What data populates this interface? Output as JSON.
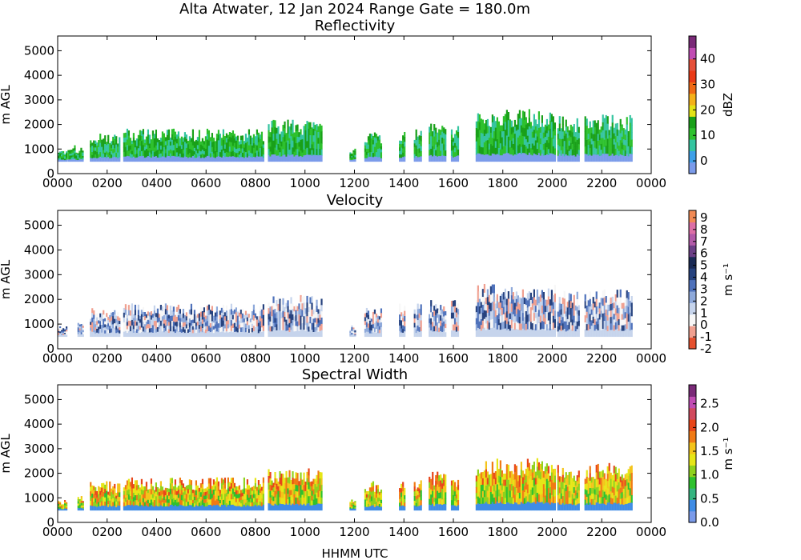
{
  "figure": {
    "title": "Alta Atwater, 12 Jan 2024 Range Gate = 180.0m",
    "xlabel": "HHMM UTC",
    "ylabel": "m AGL"
  },
  "chart_data": [
    {
      "type": "heatmap",
      "title": "Reflectivity",
      "xlabel": "HHMM UTC",
      "ylabel": "m AGL",
      "x_ticks": [
        "0000",
        "0200",
        "0400",
        "0600",
        "0800",
        "1000",
        "1200",
        "1400",
        "1600",
        "1800",
        "2000",
        "2200",
        "0000"
      ],
      "y_ticks": [
        "0",
        "1000",
        "2000",
        "3000",
        "4000",
        "5000"
      ],
      "xlim": [
        0,
        2400
      ],
      "ylim": [
        0,
        5600
      ],
      "colorbar": {
        "label": "dBZ",
        "range": [
          -5,
          49
        ],
        "ticks": [
          "0",
          "10",
          "20",
          "30",
          "40"
        ],
        "tick_values": [
          0,
          10,
          20,
          30,
          40
        ],
        "colors": [
          "#7b9bea",
          "#3ea0e8",
          "#35c5a0",
          "#2ec12e",
          "#19a019",
          "#e3e317",
          "#f4b11a",
          "#f06a15",
          "#ea3a17",
          "#e5503a",
          "#c04cb3",
          "#7a2a78"
        ]
      },
      "echo_segments": [
        {
          "x": [
            0,
            35
          ],
          "top_m": 900
        },
        {
          "x": [
            40,
            100
          ],
          "top_m": 1100
        },
        {
          "x": [
            130,
            250
          ],
          "top_m": 1600
        },
        {
          "x": [
            265,
            830
          ],
          "top_m": 1750
        },
        {
          "x": [
            850,
            1070
          ],
          "top_m": 2100
        },
        {
          "x": [
            1180,
            1200
          ],
          "top_m": 1000
        },
        {
          "x": [
            1240,
            1310
          ],
          "top_m": 1600
        },
        {
          "x": [
            1380,
            1400
          ],
          "top_m": 1750
        },
        {
          "x": [
            1440,
            1470
          ],
          "top_m": 1800
        },
        {
          "x": [
            1500,
            1570
          ],
          "top_m": 2000
        },
        {
          "x": [
            1590,
            1620
          ],
          "top_m": 1900
        },
        {
          "x": [
            1690,
            2010
          ],
          "top_m": 2500
        },
        {
          "x": [
            2020,
            2110
          ],
          "top_m": 2250
        },
        {
          "x": [
            2130,
            2320
          ],
          "top_m": 2300
        }
      ]
    },
    {
      "type": "heatmap",
      "title": "Velocity",
      "xlabel": "HHMM UTC",
      "ylabel": "m AGL",
      "x_ticks": [
        "0000",
        "0200",
        "0400",
        "0600",
        "0800",
        "1000",
        "1200",
        "1400",
        "1600",
        "1800",
        "2000",
        "2200",
        "0000"
      ],
      "y_ticks": [
        "0",
        "1000",
        "2000",
        "3000",
        "4000",
        "5000"
      ],
      "xlim": [
        0,
        2400
      ],
      "ylim": [
        0,
        5600
      ],
      "colorbar": {
        "label": "m s⁻¹",
        "range": [
          -2,
          9.6
        ],
        "ticks": [
          "-2",
          "-1",
          "0",
          "1",
          "2",
          "3",
          "4",
          "5",
          "6",
          "7",
          "8",
          "9"
        ],
        "tick_values": [
          -2,
          -1,
          0,
          1,
          2,
          3,
          4,
          5,
          6,
          7,
          8,
          9
        ],
        "colors": [
          "#e5502e",
          "#f0a090",
          "#f7f7f7",
          "#c6d4ec",
          "#8ea9da",
          "#4f72bb",
          "#26427e",
          "#1a2a55",
          "#6b3f86",
          "#b25aa8",
          "#dc6fa6",
          "#f18a55"
        ]
      },
      "echo_segments": [
        {
          "x": [
            0,
            35
          ],
          "top_m": 900
        },
        {
          "x": [
            80,
            100
          ],
          "top_m": 1100
        },
        {
          "x": [
            130,
            250
          ],
          "top_m": 1600
        },
        {
          "x": [
            265,
            830
          ],
          "top_m": 1750
        },
        {
          "x": [
            850,
            1070
          ],
          "top_m": 2100
        },
        {
          "x": [
            1180,
            1200
          ],
          "top_m": 1000
        },
        {
          "x": [
            1240,
            1310
          ],
          "top_m": 1600
        },
        {
          "x": [
            1380,
            1400
          ],
          "top_m": 1750
        },
        {
          "x": [
            1440,
            1470
          ],
          "top_m": 1800
        },
        {
          "x": [
            1500,
            1570
          ],
          "top_m": 2000
        },
        {
          "x": [
            1590,
            1620
          ],
          "top_m": 1900
        },
        {
          "x": [
            1690,
            2010
          ],
          "top_m": 2500
        },
        {
          "x": [
            2020,
            2110
          ],
          "top_m": 2250
        },
        {
          "x": [
            2130,
            2320
          ],
          "top_m": 2300
        }
      ]
    },
    {
      "type": "heatmap",
      "title": "Spectral Width",
      "xlabel": "HHMM UTC",
      "ylabel": "m AGL",
      "x_ticks": [
        "0000",
        "0200",
        "0400",
        "0600",
        "0800",
        "1000",
        "1200",
        "1400",
        "1600",
        "1800",
        "2000",
        "2200",
        "0000"
      ],
      "y_ticks": [
        "0",
        "1000",
        "2000",
        "3000",
        "4000",
        "5000"
      ],
      "xlim": [
        0,
        2400
      ],
      "ylim": [
        0,
        5600
      ],
      "colorbar": {
        "label": "m s⁻¹",
        "range": [
          0,
          2.9
        ],
        "ticks": [
          "0.0",
          "0.5",
          "1.0",
          "1.5",
          "2.0",
          "2.5"
        ],
        "tick_values": [
          0,
          0.5,
          1.0,
          1.5,
          2.0,
          2.5
        ],
        "colors": [
          "#7b9bea",
          "#3f8ce5",
          "#35b580",
          "#2ec12e",
          "#8fd21d",
          "#e6e617",
          "#f4c41a",
          "#f07a15",
          "#e8461a",
          "#d14a5e",
          "#c04cb3",
          "#7a2a78"
        ]
      },
      "echo_segments": [
        {
          "x": [
            0,
            35
          ],
          "top_m": 900
        },
        {
          "x": [
            80,
            100
          ],
          "top_m": 1100
        },
        {
          "x": [
            130,
            250
          ],
          "top_m": 1600
        },
        {
          "x": [
            265,
            830
          ],
          "top_m": 1750
        },
        {
          "x": [
            850,
            1070
          ],
          "top_m": 2100
        },
        {
          "x": [
            1180,
            1200
          ],
          "top_m": 1000
        },
        {
          "x": [
            1240,
            1310
          ],
          "top_m": 1600
        },
        {
          "x": [
            1380,
            1400
          ],
          "top_m": 1750
        },
        {
          "x": [
            1440,
            1470
          ],
          "top_m": 1800
        },
        {
          "x": [
            1500,
            1570
          ],
          "top_m": 2000
        },
        {
          "x": [
            1590,
            1620
          ],
          "top_m": 1900
        },
        {
          "x": [
            1690,
            2010
          ],
          "top_m": 2500
        },
        {
          "x": [
            2020,
            2110
          ],
          "top_m": 2250
        },
        {
          "x": [
            2130,
            2320
          ],
          "top_m": 2300
        }
      ]
    }
  ]
}
